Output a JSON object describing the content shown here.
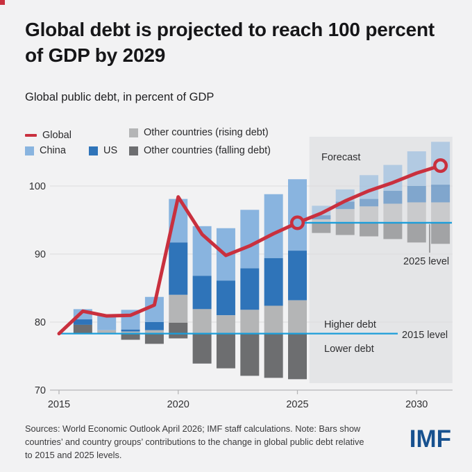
{
  "accent": {
    "corner_color": "#c9303e"
  },
  "header": {
    "title_line1": "Global debt is projected to reach 100 percent",
    "title_line2": "of GDP by 2029",
    "subtitle": "Global public debt, in percent of GDP"
  },
  "legend": {
    "global_label": "Global",
    "china_label": "China",
    "us_label": "US",
    "other_rising_label": "Other countries (rising debt)",
    "other_falling_label": "Other countries (falling debt)"
  },
  "annotations": {
    "forecast": "Forecast",
    "higher_debt": "Higher debt",
    "lower_debt": "Lower debt",
    "level_2015": "2015 level",
    "level_2025": "2025 level"
  },
  "colors": {
    "china": "#89b4df",
    "us": "#2f74b9",
    "other_rising": "#b4b5b6",
    "other_falling": "#6d6e70",
    "line": "#c9303e",
    "level_line": "#1b9dd9",
    "forecast_box": "#e4e5e7",
    "grid": "#dcdcde",
    "axis": "#b5b5b7",
    "axis_text": "#2f2f31",
    "marker_fill_2025": "#89b4df",
    "marker_fill_2031": "#bcd2e8",
    "callout": "#58585a"
  },
  "chart_data": {
    "type": "combo_stacked_bar_line",
    "title": "Global debt is projected to reach 100 percent of GDP by 2029",
    "subtitle": "Global public debt, in percent of GDP",
    "ylabel": "percent of GDP",
    "ylim": [
      70,
      107
    ],
    "yticks": [
      "100",
      "90",
      "80",
      "70"
    ],
    "ytick_values": [
      100,
      90,
      80,
      70
    ],
    "xticks": [
      "2015",
      "2020",
      "2025",
      "2030"
    ],
    "xtick_values": [
      2015,
      2020,
      2025,
      2030
    ],
    "grid": true,
    "baseline_2015": 78.3,
    "baseline_2025": 94.6,
    "forecast_start": 2025.5,
    "forecast_end": 2031.5,
    "line": {
      "name": "Global",
      "x": [
        2015,
        2016,
        2017,
        2018,
        2019,
        2020,
        2021,
        2022,
        2023,
        2024,
        2025,
        2026,
        2027,
        2028,
        2029,
        2030,
        2031
      ],
      "values": [
        78.3,
        81.6,
        80.9,
        81.0,
        82.5,
        98.4,
        92.9,
        89.8,
        91.2,
        93.0,
        94.6,
        96.0,
        97.8,
        99.3,
        100.5,
        101.9,
        103.0
      ]
    },
    "markers": [
      {
        "year": 2025,
        "value": 94.6,
        "fill_key": "marker_fill_2025"
      },
      {
        "year": 2031,
        "value": 103.0,
        "fill_key": "marker_fill_2031"
      }
    ],
    "bars": [
      {
        "year": 2016,
        "forecast": false,
        "segments": [
          {
            "group": "china",
            "from": 80.4,
            "to": 81.9
          },
          {
            "group": "us",
            "from": 79.6,
            "to": 80.4
          },
          {
            "group": "other_falling",
            "from": 78.3,
            "to": 79.6
          }
        ]
      },
      {
        "year": 2017,
        "forecast": false,
        "segments": [
          {
            "group": "china",
            "from": 78.8,
            "to": 81.0
          },
          {
            "group": "other_rising",
            "from": 78.3,
            "to": 78.8
          }
        ]
      },
      {
        "year": 2018,
        "forecast": false,
        "segments": [
          {
            "group": "china",
            "from": 78.9,
            "to": 81.8
          },
          {
            "group": "us",
            "from": 78.6,
            "to": 78.9
          },
          {
            "group": "other_rising",
            "from": 78.3,
            "to": 78.6
          },
          {
            "group": "other_falling",
            "from": 77.4,
            "to": 78.3
          }
        ]
      },
      {
        "year": 2019,
        "forecast": false,
        "segments": [
          {
            "group": "china",
            "from": 80.0,
            "to": 83.7
          },
          {
            "group": "us",
            "from": 78.8,
            "to": 80.0
          },
          {
            "group": "other_rising",
            "from": 78.3,
            "to": 78.8
          },
          {
            "group": "other_falling",
            "from": 76.8,
            "to": 78.3
          }
        ]
      },
      {
        "year": 2020,
        "forecast": false,
        "segments": [
          {
            "group": "china",
            "from": 91.7,
            "to": 98.1
          },
          {
            "group": "us",
            "from": 84.0,
            "to": 91.7
          },
          {
            "group": "other_rising",
            "from": 79.9,
            "to": 84.0
          },
          {
            "group": "other_falling",
            "from": 77.6,
            "to": 79.9
          }
        ]
      },
      {
        "year": 2021,
        "forecast": false,
        "segments": [
          {
            "group": "china",
            "from": 86.8,
            "to": 94.1
          },
          {
            "group": "us",
            "from": 81.9,
            "to": 86.8
          },
          {
            "group": "other_rising",
            "from": 78.3,
            "to": 81.9
          },
          {
            "group": "other_falling",
            "from": 73.9,
            "to": 78.3
          }
        ]
      },
      {
        "year": 2022,
        "forecast": false,
        "segments": [
          {
            "group": "china",
            "from": 86.1,
            "to": 93.8
          },
          {
            "group": "us",
            "from": 81.0,
            "to": 86.1
          },
          {
            "group": "other_rising",
            "from": 78.3,
            "to": 81.0
          },
          {
            "group": "other_falling",
            "from": 73.2,
            "to": 78.3
          }
        ]
      },
      {
        "year": 2023,
        "forecast": false,
        "segments": [
          {
            "group": "china",
            "from": 87.9,
            "to": 96.5
          },
          {
            "group": "us",
            "from": 81.8,
            "to": 87.9
          },
          {
            "group": "other_rising",
            "from": 78.3,
            "to": 81.8
          },
          {
            "group": "other_falling",
            "from": 72.1,
            "to": 78.3
          }
        ]
      },
      {
        "year": 2024,
        "forecast": false,
        "segments": [
          {
            "group": "china",
            "from": 89.4,
            "to": 98.8
          },
          {
            "group": "us",
            "from": 82.4,
            "to": 89.4
          },
          {
            "group": "other_rising",
            "from": 78.3,
            "to": 82.4
          },
          {
            "group": "other_falling",
            "from": 71.8,
            "to": 78.3
          }
        ]
      },
      {
        "year": 2025,
        "forecast": false,
        "segments": [
          {
            "group": "china",
            "from": 90.5,
            "to": 101.0
          },
          {
            "group": "us",
            "from": 83.2,
            "to": 90.5
          },
          {
            "group": "other_rising",
            "from": 78.3,
            "to": 83.2
          },
          {
            "group": "other_falling",
            "from": 71.6,
            "to": 78.3
          }
        ]
      },
      {
        "year": 2026,
        "forecast": true,
        "segments": [
          {
            "group": "china",
            "from": 95.7,
            "to": 97.1
          },
          {
            "group": "us",
            "from": 95.1,
            "to": 95.7
          },
          {
            "group": "other_rising",
            "from": 94.6,
            "to": 95.1
          },
          {
            "group": "other_falling",
            "from": 93.1,
            "to": 94.6
          }
        ]
      },
      {
        "year": 2027,
        "forecast": true,
        "segments": [
          {
            "group": "china",
            "from": 97.7,
            "to": 99.5
          },
          {
            "group": "us",
            "from": 96.6,
            "to": 97.7
          },
          {
            "group": "other_rising",
            "from": 94.6,
            "to": 96.6
          },
          {
            "group": "other_falling",
            "from": 92.8,
            "to": 94.6
          }
        ]
      },
      {
        "year": 2028,
        "forecast": true,
        "segments": [
          {
            "group": "china",
            "from": 98.1,
            "to": 101.6
          },
          {
            "group": "us",
            "from": 97.0,
            "to": 98.1
          },
          {
            "group": "other_rising",
            "from": 94.6,
            "to": 97.0
          },
          {
            "group": "other_falling",
            "from": 92.6,
            "to": 94.6
          }
        ]
      },
      {
        "year": 2029,
        "forecast": true,
        "segments": [
          {
            "group": "china",
            "from": 99.3,
            "to": 103.1
          },
          {
            "group": "us",
            "from": 97.4,
            "to": 99.3
          },
          {
            "group": "other_rising",
            "from": 94.6,
            "to": 97.4
          },
          {
            "group": "other_falling",
            "from": 92.2,
            "to": 94.6
          }
        ]
      },
      {
        "year": 2030,
        "forecast": true,
        "segments": [
          {
            "group": "china",
            "from": 100.0,
            "to": 105.1
          },
          {
            "group": "us",
            "from": 97.6,
            "to": 100.0
          },
          {
            "group": "other_rising",
            "from": 94.6,
            "to": 97.6
          },
          {
            "group": "other_falling",
            "from": 91.7,
            "to": 94.6
          }
        ]
      },
      {
        "year": 2031,
        "forecast": true,
        "segments": [
          {
            "group": "china",
            "from": 100.2,
            "to": 106.5
          },
          {
            "group": "us",
            "from": 97.6,
            "to": 100.2
          },
          {
            "group": "other_rising",
            "from": 94.6,
            "to": 97.6
          },
          {
            "group": "other_falling",
            "from": 91.5,
            "to": 94.6
          }
        ]
      }
    ],
    "legend_entries": [
      "Global",
      "China",
      "US",
      "Other countries (rising debt)",
      "Other countries (falling debt)"
    ],
    "legend_position": "top-left"
  },
  "footer": {
    "text": "Sources: World Economic Outlook April 2026; IMF staff calculations. Note: Bars show countries’ and country groups’ contributions to the change in global public debt relative to 2015 and 2025 levels.",
    "logo": "IMF"
  }
}
